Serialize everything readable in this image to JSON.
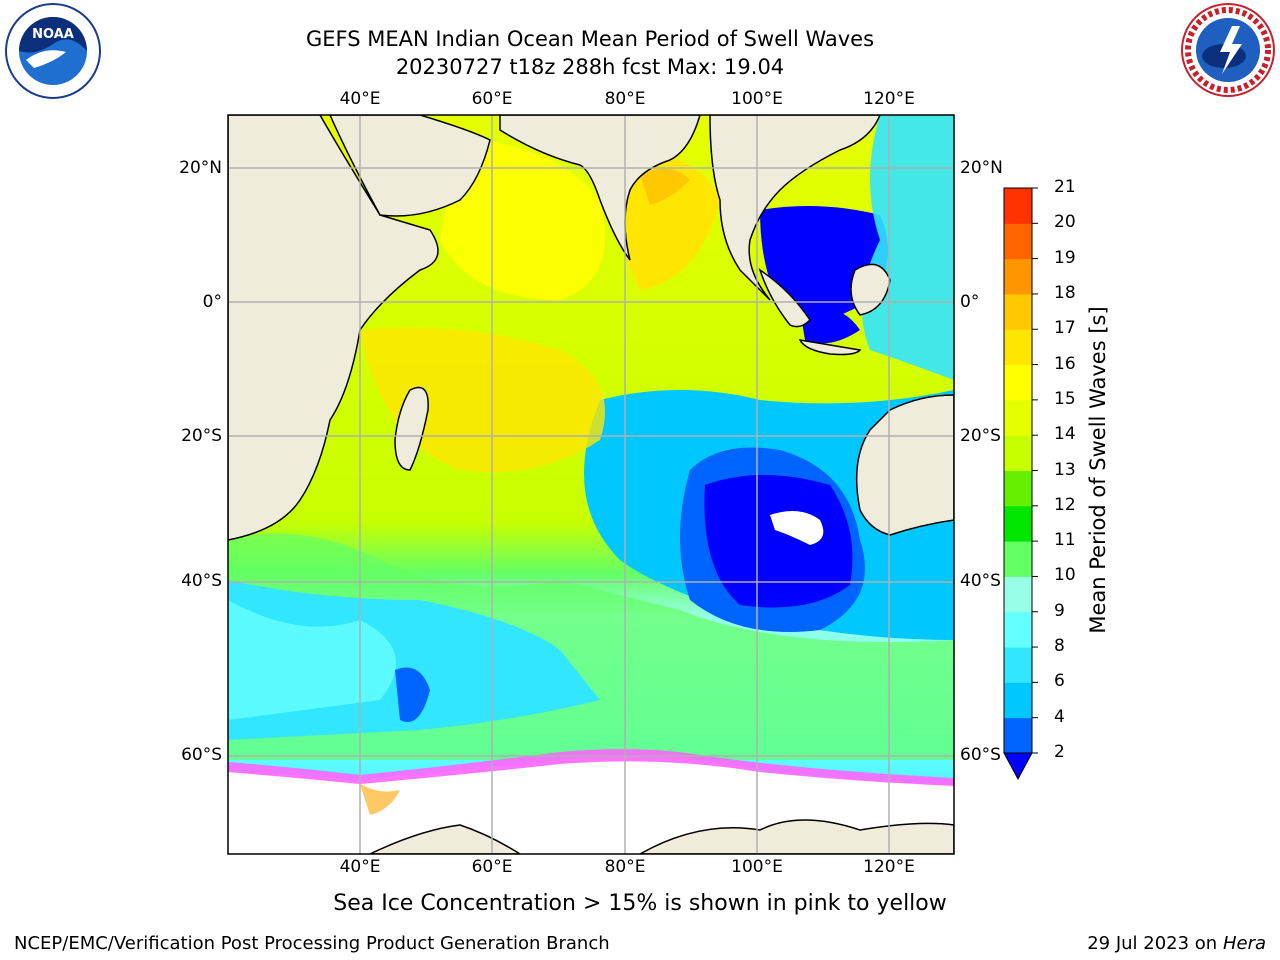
{
  "title_line1": "GEFS MEAN Indian Ocean Mean Period of Swell Waves",
  "title_line2": "20230727 t18z 288h fcst   Max: 19.04",
  "lon_labels": [
    "40°E",
    "60°E",
    "80°E",
    "100°E",
    "120°E"
  ],
  "lat_labels": [
    "20°N",
    "0°",
    "20°S",
    "40°S",
    "60°S"
  ],
  "colorbar": {
    "label": "Mean Period of Swell Waves [s]",
    "ticks": [
      "2",
      "4",
      "6",
      "8",
      "9",
      "10",
      "11",
      "12",
      "13",
      "14",
      "15",
      "16",
      "17",
      "18",
      "19",
      "20",
      "21"
    ],
    "colors": [
      "#0064ff",
      "#00c8ff",
      "#32e6ff",
      "#64ffff",
      "#96ffe6",
      "#64ff64",
      "#00e600",
      "#64f000",
      "#c8ff00",
      "#e6ff00",
      "#ffff00",
      "#ffe600",
      "#ffc800",
      "#ff9600",
      "#ff6400",
      "#ff3200"
    ],
    "underflow_color": "#0000ff"
  },
  "ice_note": "Sea Ice Concentration > 15% is shown in pink to yellow",
  "footer_left": "NCEP/EMC/Verification Post Processing Product Generation Branch",
  "footer_date": "29 Jul 2023 on ",
  "footer_machine": "Hera",
  "logos": {
    "left": "noaa-logo",
    "left_text": "NOAA",
    "right": "nws-logo",
    "right_text": "NATIONAL WEATHER SERVICE"
  },
  "map_colors": {
    "land": "#efecdc",
    "ice_free_south": "#ffffff",
    "grid": "#b0b0b0"
  }
}
